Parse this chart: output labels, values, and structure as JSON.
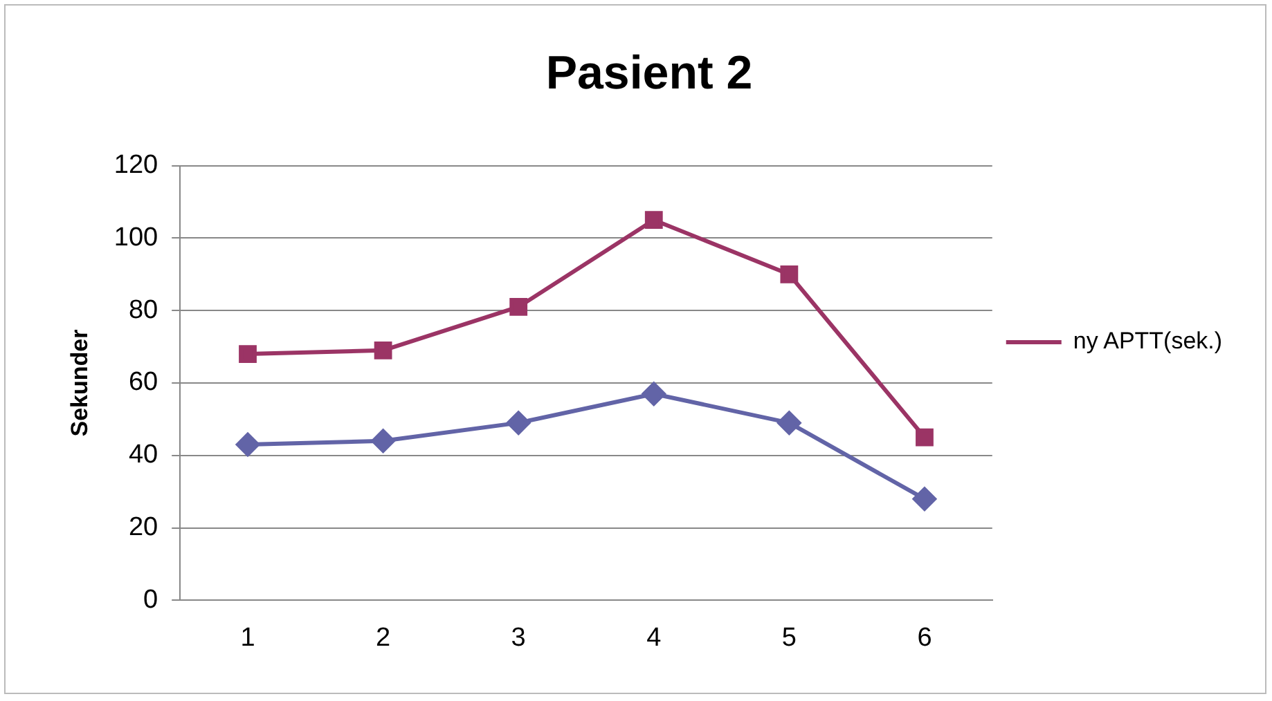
{
  "chart_data": {
    "type": "line",
    "title": "Pasient 2",
    "ylabel": "Sekunder",
    "categories": [
      "1",
      "2",
      "3",
      "4",
      "5",
      "6"
    ],
    "series": [
      {
        "color": "#6264a7",
        "marker": "diamond",
        "values": [
          43,
          44,
          49,
          57,
          49,
          28
        ]
      },
      {
        "name": "ny APTT(sek.)",
        "color": "#9b3465",
        "marker": "square",
        "values": [
          68,
          69,
          81,
          105,
          90,
          45
        ]
      }
    ],
    "ylim": [
      0,
      120
    ],
    "yticks": [
      0,
      20,
      40,
      60,
      80,
      100,
      120
    ],
    "grid": "y",
    "legend": "right"
  }
}
